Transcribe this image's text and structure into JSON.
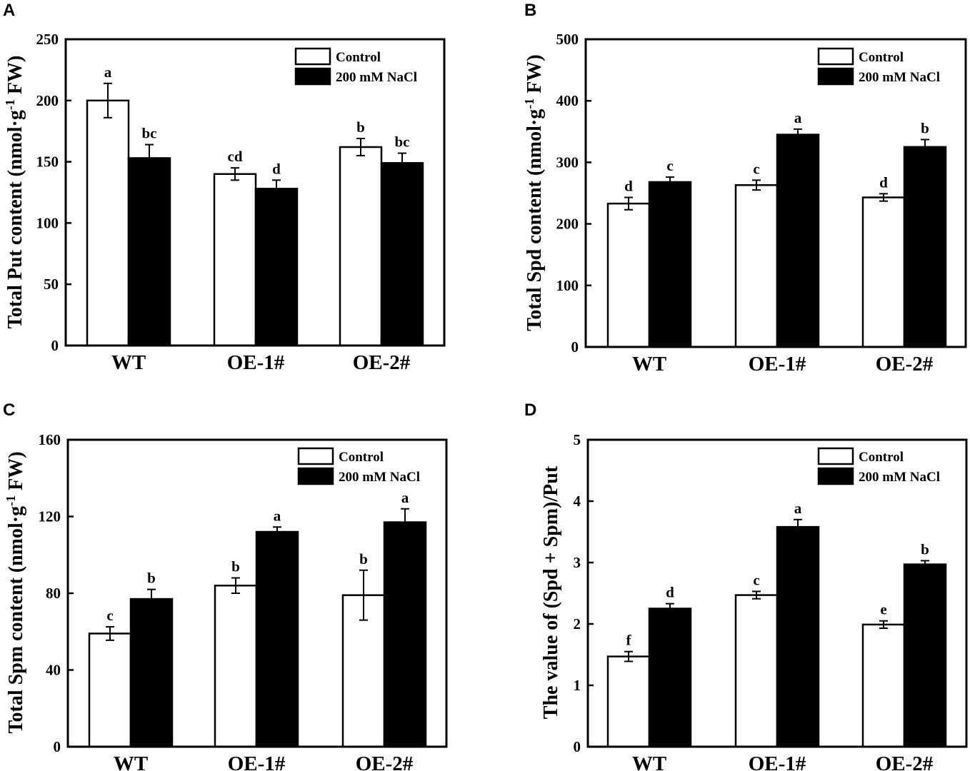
{
  "figure": {
    "categories": [
      "WT",
      "OE-1#",
      "OE-2#"
    ],
    "legend": [
      "Control",
      "200 mM NaCl"
    ],
    "colors": {
      "control": "#ffffff",
      "nacl": "#000000",
      "stroke": "#000000"
    }
  },
  "chart_data": [
    {
      "panel": "A",
      "type": "bar",
      "ylabel": "Total Put content (nmol·g",
      "ylabel_sup": "-1",
      "ylabel_end": " FW)",
      "ylim": [
        0,
        250
      ],
      "yticks": [
        0,
        50,
        100,
        150,
        200,
        250
      ],
      "categories": [
        "WT",
        "OE-1#",
        "OE-2#"
      ],
      "series": [
        {
          "name": "Control",
          "values": [
            200,
            140,
            162
          ],
          "errors": [
            14,
            5,
            7
          ],
          "letters": [
            "a",
            "cd",
            "b"
          ]
        },
        {
          "name": "200 mM NaCl",
          "values": [
            153,
            128,
            149
          ],
          "errors": [
            11,
            7,
            8
          ],
          "letters": [
            "bc",
            "d",
            "bc"
          ]
        }
      ]
    },
    {
      "panel": "B",
      "type": "bar",
      "ylabel": "Total Spd content (nmol·g",
      "ylabel_sup": "-1",
      "ylabel_end": " FW)",
      "ylim": [
        0,
        500
      ],
      "yticks": [
        0,
        100,
        200,
        300,
        400,
        500
      ],
      "categories": [
        "WT",
        "OE-1#",
        "OE-2#"
      ],
      "series": [
        {
          "name": "Control",
          "values": [
            233,
            263,
            243
          ],
          "errors": [
            10,
            8,
            6
          ],
          "letters": [
            "d",
            "c",
            "d"
          ]
        },
        {
          "name": "200 mM NaCl",
          "values": [
            268,
            345,
            325
          ],
          "errors": [
            8,
            9,
            12
          ],
          "letters": [
            "c",
            "a",
            "b"
          ]
        }
      ]
    },
    {
      "panel": "C",
      "type": "bar",
      "ylabel": "Total Spm content (nmol·g",
      "ylabel_sup": "-1",
      "ylabel_end": " FW)",
      "ylim": [
        0,
        160
      ],
      "yticks": [
        0,
        40,
        80,
        120,
        160
      ],
      "categories": [
        "WT",
        "OE-1#",
        "OE-2#"
      ],
      "series": [
        {
          "name": "Control",
          "values": [
            59,
            84,
            79
          ],
          "errors": [
            3.5,
            4,
            13
          ],
          "letters": [
            "c",
            "b",
            "b"
          ]
        },
        {
          "name": "200 mM NaCl",
          "values": [
            77,
            112,
            117
          ],
          "errors": [
            5,
            2.5,
            7
          ],
          "letters": [
            "b",
            "a",
            "a"
          ]
        }
      ]
    },
    {
      "panel": "D",
      "type": "bar",
      "ylabel": "The value of (Spd + Spm)/Put",
      "ylabel_sup": "",
      "ylabel_end": "",
      "ylim": [
        0,
        5
      ],
      "yticks": [
        0,
        1,
        2,
        3,
        4,
        5
      ],
      "categories": [
        "WT",
        "OE-1#",
        "OE-2#"
      ],
      "series": [
        {
          "name": "Control",
          "values": [
            1.47,
            2.47,
            1.99
          ],
          "errors": [
            0.08,
            0.06,
            0.06
          ],
          "letters": [
            "f",
            "c",
            "e"
          ]
        },
        {
          "name": "200 mM NaCl",
          "values": [
            2.25,
            3.58,
            2.97
          ],
          "errors": [
            0.08,
            0.12,
            0.06
          ],
          "letters": [
            "d",
            "a",
            "b"
          ]
        }
      ]
    }
  ]
}
